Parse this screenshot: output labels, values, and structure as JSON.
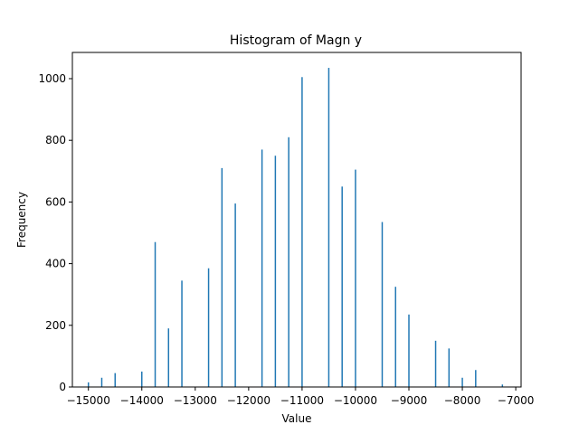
{
  "chart_data": {
    "type": "bar",
    "title": "Histogram of Magn y",
    "xlabel": "Value",
    "ylabel": "Frequency",
    "xlim": [
      -15300,
      -6900
    ],
    "ylim": [
      0,
      1085
    ],
    "xticks": [
      -15000,
      -14000,
      -13000,
      -12000,
      -11000,
      -10000,
      -9000,
      -8000,
      -7000
    ],
    "xtick_labels": [
      "−15000",
      "−14000",
      "−13000",
      "−12000",
      "−11000",
      "−10000",
      "−9000",
      "−8000",
      "−7000"
    ],
    "yticks": [
      0,
      200,
      400,
      600,
      800,
      1000
    ],
    "ytick_labels": [
      "0",
      "200",
      "400",
      "600",
      "800",
      "1000"
    ],
    "bar_color": "#1f77b4",
    "bin_width": 25,
    "bins": [
      {
        "x": -15000,
        "value": 15
      },
      {
        "x": -14750,
        "value": 30
      },
      {
        "x": -14500,
        "value": 45
      },
      {
        "x": -14000,
        "value": 50
      },
      {
        "x": -13750,
        "value": 470
      },
      {
        "x": -13500,
        "value": 190
      },
      {
        "x": -13250,
        "value": 345
      },
      {
        "x": -12750,
        "value": 385
      },
      {
        "x": -12500,
        "value": 710
      },
      {
        "x": -12250,
        "value": 595
      },
      {
        "x": -11750,
        "value": 770
      },
      {
        "x": -11500,
        "value": 750
      },
      {
        "x": -11250,
        "value": 810
      },
      {
        "x": -11000,
        "value": 1005
      },
      {
        "x": -10500,
        "value": 1035
      },
      {
        "x": -10250,
        "value": 650
      },
      {
        "x": -10000,
        "value": 705
      },
      {
        "x": -9500,
        "value": 535
      },
      {
        "x": -9250,
        "value": 325
      },
      {
        "x": -9000,
        "value": 235
      },
      {
        "x": -8500,
        "value": 150
      },
      {
        "x": -8250,
        "value": 125
      },
      {
        "x": -8000,
        "value": 30
      },
      {
        "x": -7750,
        "value": 55
      },
      {
        "x": -7250,
        "value": 8
      }
    ]
  }
}
